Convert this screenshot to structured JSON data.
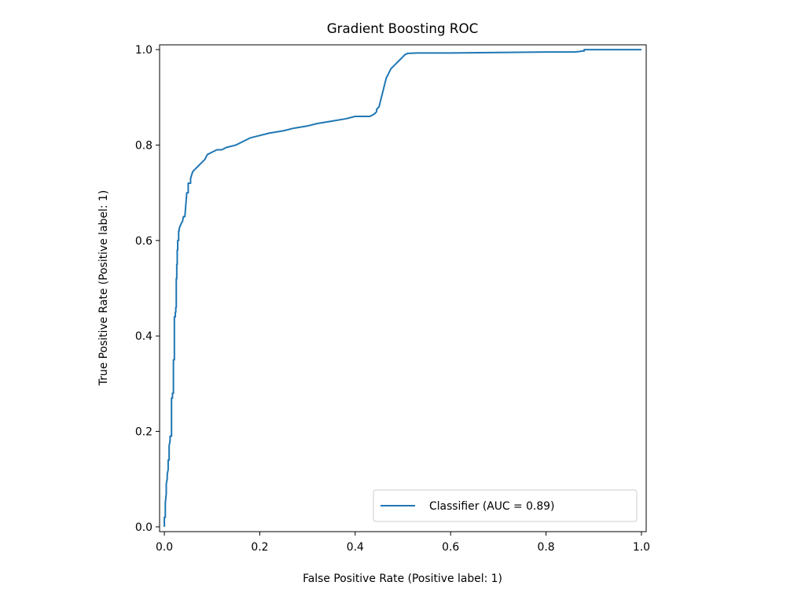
{
  "chart_data": {
    "type": "line",
    "title": "Gradient Boosting ROC",
    "xlabel": "False Positive Rate (Positive label: 1)",
    "ylabel": "True Positive Rate (Positive label: 1)",
    "xlim": [
      -0.01,
      1.01
    ],
    "ylim": [
      -0.01,
      1.01
    ],
    "x_ticks": [
      0.0,
      0.2,
      0.4,
      0.6,
      0.8,
      1.0
    ],
    "x_tick_labels": [
      "0.0",
      "0.2",
      "0.4",
      "0.6",
      "0.8",
      "1.0"
    ],
    "y_ticks": [
      0.0,
      0.2,
      0.4,
      0.6,
      0.8,
      1.0
    ],
    "y_tick_labels": [
      "0.0",
      "0.2",
      "0.4",
      "0.6",
      "0.8",
      "1.0"
    ],
    "grid": false,
    "legend_position": "lower-right",
    "series": [
      {
        "name": "Classifier (AUC = 0.89)",
        "color": "#1f77b4",
        "x": [
          0.0,
          0.0,
          0.002,
          0.002,
          0.004,
          0.004,
          0.006,
          0.006,
          0.008,
          0.008,
          0.01,
          0.01,
          0.012,
          0.012,
          0.015,
          0.015,
          0.017,
          0.017,
          0.019,
          0.019,
          0.021,
          0.021,
          0.023,
          0.023,
          0.024,
          0.024,
          0.025,
          0.025,
          0.026,
          0.026,
          0.027,
          0.027,
          0.028,
          0.028,
          0.03,
          0.03,
          0.031,
          0.031,
          0.033,
          0.035,
          0.038,
          0.04,
          0.043,
          0.047,
          0.05,
          0.05,
          0.055,
          0.055,
          0.058,
          0.06,
          0.065,
          0.07,
          0.075,
          0.08,
          0.085,
          0.09,
          0.1,
          0.11,
          0.12,
          0.13,
          0.15,
          0.16,
          0.17,
          0.18,
          0.2,
          0.22,
          0.25,
          0.27,
          0.3,
          0.32,
          0.35,
          0.38,
          0.4,
          0.42,
          0.43,
          0.435,
          0.44,
          0.445,
          0.445,
          0.45,
          0.45,
          0.455,
          0.46,
          0.465,
          0.47,
          0.475,
          0.48,
          0.485,
          0.49,
          0.5,
          0.505,
          0.51,
          0.53,
          0.6,
          0.7,
          0.8,
          0.86,
          0.87,
          0.875,
          0.88,
          0.88,
          0.9,
          0.95,
          1.0
        ],
        "y": [
          0.0,
          0.02,
          0.02,
          0.05,
          0.07,
          0.09,
          0.1,
          0.11,
          0.12,
          0.14,
          0.14,
          0.17,
          0.18,
          0.19,
          0.19,
          0.27,
          0.27,
          0.28,
          0.28,
          0.35,
          0.35,
          0.44,
          0.44,
          0.45,
          0.45,
          0.46,
          0.46,
          0.52,
          0.52,
          0.55,
          0.55,
          0.58,
          0.58,
          0.6,
          0.6,
          0.62,
          0.62,
          0.625,
          0.63,
          0.635,
          0.64,
          0.65,
          0.65,
          0.7,
          0.7,
          0.72,
          0.72,
          0.73,
          0.74,
          0.745,
          0.75,
          0.755,
          0.76,
          0.765,
          0.77,
          0.78,
          0.785,
          0.79,
          0.79,
          0.795,
          0.8,
          0.805,
          0.81,
          0.815,
          0.82,
          0.825,
          0.83,
          0.835,
          0.84,
          0.845,
          0.85,
          0.855,
          0.86,
          0.86,
          0.86,
          0.862,
          0.865,
          0.87,
          0.875,
          0.88,
          0.88,
          0.9,
          0.92,
          0.94,
          0.95,
          0.96,
          0.965,
          0.97,
          0.975,
          0.985,
          0.99,
          0.992,
          0.993,
          0.993,
          0.994,
          0.995,
          0.995,
          0.996,
          0.997,
          0.997,
          1.0,
          1.0,
          1.0,
          1.0
        ]
      }
    ]
  }
}
